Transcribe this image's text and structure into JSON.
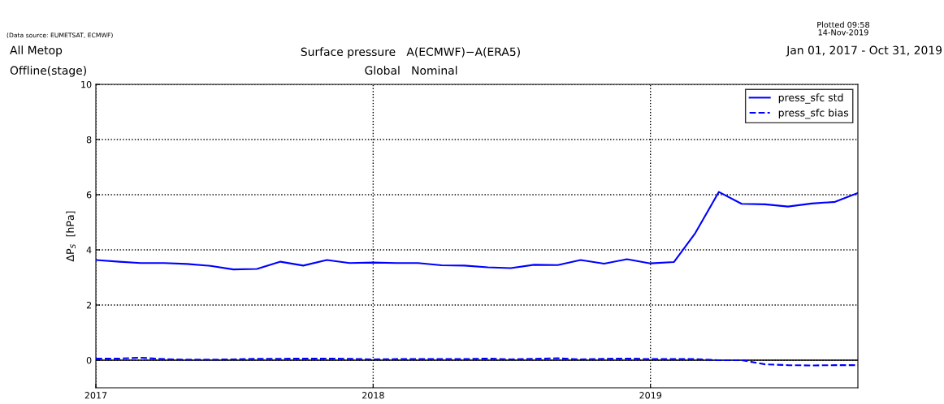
{
  "chart_data": {
    "type": "line",
    "title": "Surface pressure   A(ECMWF)−A(ERA5)",
    "subtitle": "Global   Nominal",
    "ylabel": "ΔP$_{S}$  [hPa]",
    "annotations": [
      "All Metop",
      "Offline(stage)",
      "Jan 01, 2017 - Oct 31, 2019",
      "Plotted 09:58\n14-Nov-2019",
      "(Data source: EUMETSAT, ECMWF)"
    ],
    "x": [
      "2017-01",
      "2017-02",
      "2017-03",
      "2017-04",
      "2017-05",
      "2017-06",
      "2017-07",
      "2017-08",
      "2017-09",
      "2017-10",
      "2017-11",
      "2017-12",
      "2018-01",
      "2018-02",
      "2018-03",
      "2018-04",
      "2018-05",
      "2018-06",
      "2018-07",
      "2018-08",
      "2018-09",
      "2018-10",
      "2018-11",
      "2018-12",
      "2019-01",
      "2019-02",
      "2019-03",
      "2019-04",
      "2019-05",
      "2019-06",
      "2019-07",
      "2019-08",
      "2019-09",
      "2019-10"
    ],
    "series": [
      {
        "name": "press_sfc std",
        "color": "#0000ff",
        "line_style": "solid",
        "values": [
          3.63,
          3.57,
          3.52,
          3.52,
          3.49,
          3.42,
          3.29,
          3.31,
          3.57,
          3.43,
          3.63,
          3.52,
          3.54,
          3.52,
          3.52,
          3.44,
          3.43,
          3.37,
          3.34,
          3.46,
          3.45,
          3.63,
          3.5,
          3.66,
          3.51,
          3.56,
          4.61,
          6.1,
          5.67,
          5.65,
          5.57,
          5.68,
          5.74,
          6.06
        ]
      },
      {
        "name": "press_sfc bias",
        "color": "#0000ff",
        "line_style": "dashed",
        "values": [
          0.06,
          0.06,
          0.09,
          0.04,
          0.02,
          0.02,
          0.03,
          0.05,
          0.05,
          0.06,
          0.06,
          0.05,
          0.03,
          0.04,
          0.04,
          0.04,
          0.04,
          0.06,
          0.03,
          0.05,
          0.07,
          0.03,
          0.05,
          0.06,
          0.04,
          0.04,
          0.04,
          0.0,
          0.0,
          -0.15,
          -0.18,
          -0.19,
          -0.18,
          -0.18
        ]
      }
    ],
    "xlim": [
      "2017-01",
      "2019-10"
    ],
    "xticks": [
      {
        "value": "2017-01",
        "label": "2017"
      },
      {
        "value": "2018-01",
        "label": "2018"
      },
      {
        "value": "2019-01",
        "label": "2019"
      }
    ],
    "ylim": [
      -1,
      10
    ],
    "yticks": [
      0,
      2,
      4,
      6,
      8,
      10
    ],
    "ref_lines": [
      {
        "axis": "y",
        "value": 0,
        "color": "#000000",
        "line_style": "solid"
      }
    ],
    "grid": true,
    "legend": "top right"
  }
}
